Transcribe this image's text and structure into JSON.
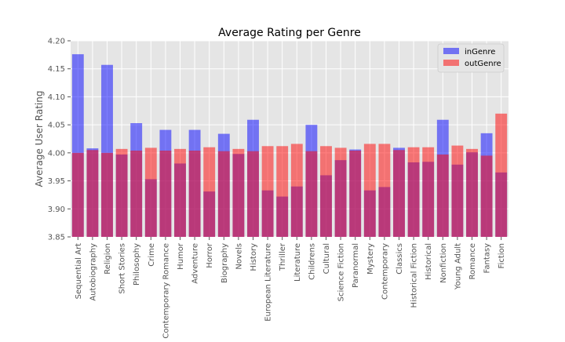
{
  "chart_data": {
    "type": "bar",
    "title": "Average Rating per Genre",
    "xlabel": "",
    "ylabel": "Average User Rating",
    "ylim": [
      3.85,
      4.2
    ],
    "yticks": [
      "3.85",
      "3.90",
      "3.95",
      "4.00",
      "4.05",
      "4.10",
      "4.15",
      "4.20"
    ],
    "grid": true,
    "legend_position": "top-right",
    "categories": [
      "Sequential Art",
      "Autobiography",
      "Religion",
      "Short Stories",
      "Philosophy",
      "Crime",
      "Contemporary Romance",
      "Humor",
      "Adventure",
      "Horror",
      "Biography",
      "Novels",
      "History",
      "European Literature",
      "Thriller",
      "Literature",
      "Childrens",
      "Cultural",
      "Science Fiction",
      "Paranormal",
      "Mystery",
      "Contemporary",
      "Classics",
      "Historical Fiction",
      "Historical",
      "Nonfiction",
      "Young Adult",
      "Romance",
      "Fantasy",
      "Fiction"
    ],
    "series": [
      {
        "name": "inGenre",
        "color": "#0000ff",
        "values": [
          4.176,
          4.008,
          4.157,
          3.997,
          4.053,
          3.953,
          4.041,
          3.981,
          4.041,
          3.931,
          4.034,
          3.998,
          4.059,
          3.933,
          3.922,
          3.94,
          4.05,
          3.96,
          3.987,
          4.006,
          3.933,
          3.939,
          4.009,
          3.983,
          3.984,
          4.059,
          3.979,
          4.001,
          4.035,
          3.965
        ]
      },
      {
        "name": "outGenre",
        "color": "#ff0000",
        "values": [
          4.0,
          4.005,
          4.0,
          4.007,
          4.004,
          4.009,
          4.004,
          4.007,
          4.004,
          4.01,
          4.003,
          4.007,
          4.003,
          4.012,
          4.012,
          4.016,
          4.003,
          4.012,
          4.009,
          4.004,
          4.016,
          4.016,
          4.005,
          4.01,
          4.01,
          3.997,
          4.013,
          4.007,
          3.995,
          4.07
        ]
      }
    ]
  }
}
